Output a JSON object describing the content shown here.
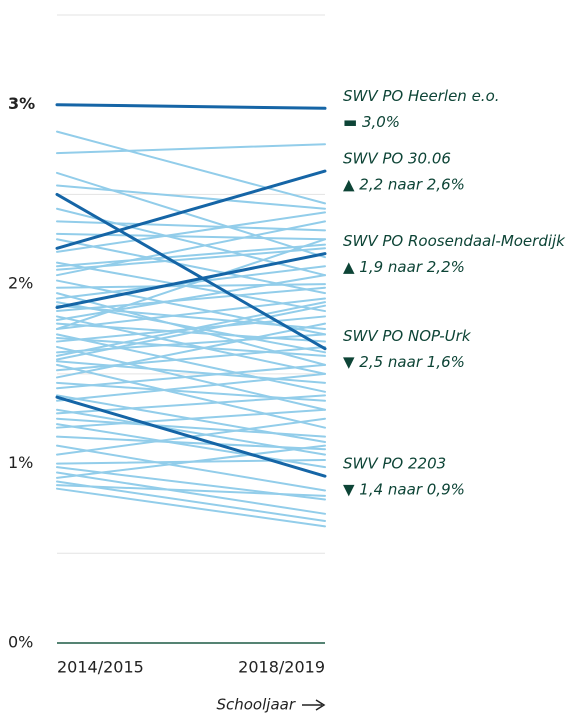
{
  "chart_data": {
    "type": "slope",
    "categories": [
      "2014/2015",
      "2018/2019"
    ],
    "x_axis_label": "Schooljaar",
    "ylim": [
      0,
      3.5
    ],
    "yticks": [
      {
        "value": 0,
        "label": "0%"
      },
      {
        "value": 1,
        "label": "1%"
      },
      {
        "value": 2,
        "label": "2%"
      },
      {
        "value": 3,
        "label": "3%"
      }
    ],
    "minor_yticks": [
      0.5,
      1.5,
      2.5,
      3.5
    ],
    "grid": true,
    "series": [
      {
        "color": "#92cdea",
        "values": [
          2.85,
          2.45
        ]
      },
      {
        "color": "#92cdea",
        "values": [
          2.73,
          2.78
        ]
      },
      {
        "color": "#92cdea",
        "values": [
          2.62,
          2.15
        ]
      },
      {
        "color": "#92cdea",
        "values": [
          2.55,
          2.42
        ]
      },
      {
        "color": "#92cdea",
        "values": [
          2.42,
          2.05
        ]
      },
      {
        "color": "#92cdea",
        "values": [
          2.35,
          2.3
        ]
      },
      {
        "color": "#92cdea",
        "values": [
          2.28,
          2.25
        ]
      },
      {
        "color": "#92cdea",
        "values": [
          2.25,
          1.95
        ]
      },
      {
        "color": "#92cdea",
        "values": [
          2.18,
          2.4
        ]
      },
      {
        "color": "#92cdea",
        "values": [
          2.12,
          1.85
        ]
      },
      {
        "color": "#92cdea",
        "values": [
          2.1,
          2.22
        ]
      },
      {
        "color": "#92cdea",
        "values": [
          2.05,
          2.35
        ]
      },
      {
        "color": "#92cdea",
        "values": [
          2.02,
          1.72
        ]
      },
      {
        "color": "#92cdea",
        "values": [
          1.98,
          2.0
        ]
      },
      {
        "color": "#92cdea",
        "values": [
          1.95,
          1.55
        ]
      },
      {
        "color": "#92cdea",
        "values": [
          1.92,
          2.1
        ]
      },
      {
        "color": "#92cdea",
        "values": [
          1.88,
          1.75
        ]
      },
      {
        "color": "#92cdea",
        "values": [
          1.85,
          1.98
        ]
      },
      {
        "color": "#92cdea",
        "values": [
          1.82,
          1.5
        ]
      },
      {
        "color": "#92cdea",
        "values": [
          1.8,
          2.05
        ]
      },
      {
        "color": "#92cdea",
        "values": [
          1.78,
          1.68
        ]
      },
      {
        "color": "#92cdea",
        "values": [
          1.75,
          1.92
        ]
      },
      {
        "color": "#92cdea",
        "values": [
          1.72,
          1.4
        ]
      },
      {
        "color": "#92cdea",
        "values": [
          1.7,
          1.6
        ]
      },
      {
        "color": "#92cdea",
        "values": [
          1.68,
          1.82
        ]
      },
      {
        "color": "#92cdea",
        "values": [
          1.65,
          1.3
        ]
      },
      {
        "color": "#92cdea",
        "values": [
          1.62,
          1.72
        ]
      },
      {
        "color": "#92cdea",
        "values": [
          1.6,
          1.9
        ]
      },
      {
        "color": "#92cdea",
        "values": [
          1.57,
          1.45
        ]
      },
      {
        "color": "#92cdea",
        "values": [
          1.55,
          1.2
        ]
      },
      {
        "color": "#92cdea",
        "values": [
          1.52,
          1.65
        ]
      },
      {
        "color": "#92cdea",
        "values": [
          1.48,
          1.78
        ]
      },
      {
        "color": "#92cdea",
        "values": [
          1.45,
          1.35
        ]
      },
      {
        "color": "#92cdea",
        "values": [
          1.42,
          1.55
        ]
      },
      {
        "color": "#92cdea",
        "values": [
          1.38,
          1.12
        ]
      },
      {
        "color": "#92cdea",
        "values": [
          1.35,
          1.5
        ]
      },
      {
        "color": "#92cdea",
        "values": [
          1.3,
          1.05
        ]
      },
      {
        "color": "#92cdea",
        "values": [
          1.28,
          1.38
        ]
      },
      {
        "color": "#92cdea",
        "values": [
          1.25,
          1.15
        ]
      },
      {
        "color": "#92cdea",
        "values": [
          1.22,
          0.98
        ]
      },
      {
        "color": "#92cdea",
        "values": [
          1.2,
          1.3
        ]
      },
      {
        "color": "#92cdea",
        "values": [
          1.15,
          1.08
        ]
      },
      {
        "color": "#92cdea",
        "values": [
          1.1,
          0.85
        ]
      },
      {
        "color": "#92cdea",
        "values": [
          1.05,
          1.25
        ]
      },
      {
        "color": "#92cdea",
        "values": [
          1.0,
          1.02
        ]
      },
      {
        "color": "#92cdea",
        "values": [
          0.98,
          0.8
        ]
      },
      {
        "color": "#92cdea",
        "values": [
          0.95,
          0.72
        ]
      },
      {
        "color": "#92cdea",
        "values": [
          0.92,
          1.1
        ]
      },
      {
        "color": "#92cdea",
        "values": [
          0.9,
          0.68
        ]
      },
      {
        "color": "#92cdea",
        "values": [
          0.88,
          0.82
        ]
      },
      {
        "color": "#92cdea",
        "values": [
          0.86,
          0.65
        ]
      },
      {
        "color": "#92cdea",
        "values": [
          1.58,
          1.88
        ]
      },
      {
        "color": "#92cdea",
        "values": [
          1.75,
          2.25
        ]
      },
      {
        "color": "#92cdea",
        "values": [
          2.08,
          2.2
        ]
      },
      {
        "color": "#92cdea",
        "values": [
          1.9,
          1.62
        ]
      },
      {
        "name": "SWV PO Heerlen e.o.",
        "change": "▬ 3,0%",
        "color": "#1565a6",
        "values": [
          3.0,
          2.98
        ]
      },
      {
        "name": "SWV PO 30.06",
        "change": "▲ 2,2 naar 2,6%",
        "color": "#1565a6",
        "values": [
          2.2,
          2.63
        ]
      },
      {
        "name": "SWV PO Roosendaal-Moerdijk",
        "change": "▲ 1,9 naar 2,2%",
        "color": "#1565a6",
        "values": [
          1.87,
          2.17
        ]
      },
      {
        "name": "SWV PO NOP-Urk",
        "change": "▼ 2,5 naar 1,6%",
        "color": "#1565a6",
        "values": [
          2.5,
          1.64
        ]
      },
      {
        "name": "SWV PO 2203",
        "change": "▼ 1,4 naar 0,9%",
        "color": "#1565a6",
        "values": [
          1.37,
          0.93
        ]
      }
    ]
  }
}
